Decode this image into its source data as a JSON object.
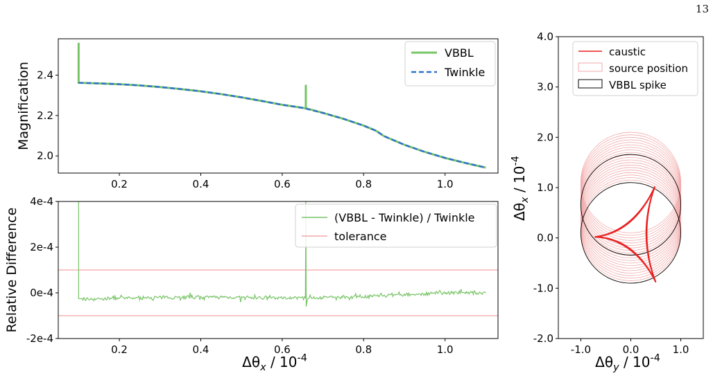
{
  "page_number": "13",
  "colors": {
    "vbbl": "#77c466",
    "twinkle": "#2f6fd0",
    "tolerance": "#f4a5a5",
    "caustic": "#e8201f",
    "source": "#f2a8a8",
    "spike": "#000000"
  },
  "chart_data": [
    {
      "id": "magnification",
      "type": "line",
      "ylabel": "Magnification",
      "xlim": [
        0.05,
        1.13
      ],
      "ylim": [
        1.915,
        2.58
      ],
      "xticks": [
        {
          "v": 0.2,
          "label": "0.2"
        },
        {
          "v": 0.4,
          "label": "0.4"
        },
        {
          "v": 0.6,
          "label": "0.6"
        },
        {
          "v": 0.8,
          "label": "0.8"
        },
        {
          "v": 1.0,
          "label": "1.0"
        }
      ],
      "yticks": [
        {
          "v": 2.0,
          "label": "2.0"
        },
        {
          "v": 2.2,
          "label": "2.2"
        },
        {
          "v": 2.4,
          "label": "2.4"
        }
      ],
      "legend": {
        "position": "top-right",
        "entries": [
          "VBBL",
          "Twinkle"
        ]
      },
      "series": [
        {
          "name": "VBBL",
          "style": "solid",
          "x": [
            0.1,
            0.1,
            0.1,
            0.1,
            0.1,
            0.15,
            0.2,
            0.25,
            0.3,
            0.35,
            0.4,
            0.45,
            0.5,
            0.55,
            0.6,
            0.65,
            0.658,
            0.658,
            0.658,
            0.662,
            0.7,
            0.75,
            0.8,
            0.83,
            0.85,
            0.9,
            0.95,
            1.0,
            1.05,
            1.1
          ],
          "y": [
            2.362,
            2.362,
            2.56,
            2.362,
            2.362,
            2.359,
            2.355,
            2.349,
            2.341,
            2.331,
            2.32,
            2.306,
            2.29,
            2.272,
            2.253,
            2.238,
            2.235,
            2.352,
            2.235,
            2.234,
            2.213,
            2.184,
            2.15,
            2.125,
            2.098,
            2.055,
            2.02,
            1.99,
            1.965,
            1.942
          ]
        },
        {
          "name": "Twinkle",
          "style": "dashed",
          "x": [
            0.1,
            0.15,
            0.2,
            0.25,
            0.3,
            0.35,
            0.4,
            0.45,
            0.5,
            0.55,
            0.6,
            0.65,
            0.7,
            0.75,
            0.8,
            0.83,
            0.85,
            0.9,
            0.95,
            1.0,
            1.05,
            1.1
          ],
          "y": [
            2.362,
            2.359,
            2.355,
            2.349,
            2.341,
            2.331,
            2.32,
            2.306,
            2.29,
            2.272,
            2.253,
            2.238,
            2.213,
            2.184,
            2.15,
            2.125,
            2.098,
            2.055,
            2.02,
            1.99,
            1.965,
            1.942
          ]
        }
      ]
    },
    {
      "id": "relative-difference",
      "type": "line",
      "ylabel": "Relative Difference",
      "xlabel": "Δθ_x  /  10^-4",
      "xlim": [
        0.05,
        1.13
      ],
      "ylim": [
        -0.0002,
        0.0004
      ],
      "xticks": [
        {
          "v": 0.2,
          "label": "0.2"
        },
        {
          "v": 0.4,
          "label": "0.4"
        },
        {
          "v": 0.6,
          "label": "0.6"
        },
        {
          "v": 0.8,
          "label": "0.8"
        },
        {
          "v": 1.0,
          "label": "1.0"
        }
      ],
      "yticks": [
        {
          "v": -0.0002,
          "label": "-2e-4"
        },
        {
          "v": 0.0,
          "label": "0e-4"
        },
        {
          "v": 0.0002,
          "label": "2e-4"
        },
        {
          "v": 0.0004,
          "label": "4e-4"
        }
      ],
      "legend": {
        "position": "top-right",
        "entries": [
          "(VBBL - Twinkle) / Twinkle",
          "tolerance"
        ]
      },
      "tolerance": [
        0.0001,
        -0.0001
      ],
      "series": [
        {
          "name": "(VBBL - Twinkle) / Twinkle",
          "x": [
            0.1,
            0.1,
            0.1,
            0.102,
            0.15,
            0.2,
            0.25,
            0.3,
            0.35,
            0.4,
            0.45,
            0.5,
            0.55,
            0.6,
            0.65,
            0.657,
            0.658,
            0.659,
            0.662,
            0.7,
            0.75,
            0.8,
            0.85,
            0.9,
            0.95,
            1.0,
            1.05,
            1.1
          ],
          "y": [
            -2.5e-05,
            0.0004,
            -2.5e-05,
            -2.8e-05,
            -2.6e-05,
            -2.4e-05,
            -2.2e-05,
            -2e-05,
            -1.9e-05,
            -1.8e-05,
            -1.9e-05,
            -2.1e-05,
            -2.2e-05,
            -2.1e-05,
            -2.2e-05,
            -2.2e-05,
            0.0004,
            -6e-05,
            -2.2e-05,
            -2e-05,
            -1.8e-05,
            -1.6e-05,
            -1.2e-05,
            -8e-06,
            -4e-06,
            0.0,
            2e-06,
            0.0
          ],
          "noise_amplitude": 1.2e-05
        }
      ]
    },
    {
      "id": "source-plane",
      "type": "line",
      "xlabel": "Δθ_y  /  10^-4",
      "ylabel": "Δθ_x  /  10^-4",
      "xlim": [
        -1.45,
        1.45
      ],
      "ylim": [
        -2.0,
        4.0
      ],
      "xticks": [
        {
          "v": -1.0,
          "label": "-1.0"
        },
        {
          "v": 0.0,
          "label": "0.0"
        },
        {
          "v": 1.0,
          "label": "1.0"
        }
      ],
      "yticks": [
        {
          "v": -2.0,
          "label": "-2.0"
        },
        {
          "v": -1.0,
          "label": "-1.0"
        },
        {
          "v": 0.0,
          "label": "0.0"
        },
        {
          "v": 1.0,
          "label": "1.0"
        },
        {
          "v": 2.0,
          "label": "2.0"
        },
        {
          "v": 3.0,
          "label": "3.0"
        },
        {
          "v": 4.0,
          "label": "4.0"
        }
      ],
      "legend": {
        "position": "top-center",
        "entries": [
          "caustic",
          "source position",
          "VBBL spike"
        ]
      },
      "caustic": {
        "cusps": [
          [
            0.48,
            1.02
          ],
          [
            -0.72,
            0.02
          ],
          [
            0.5,
            -0.88
          ]
        ]
      },
      "source_radius": 1.0,
      "source_centers": {
        "x": 0.0,
        "y_from": 0.1,
        "y_to": 1.1,
        "count": 21
      },
      "spike_centers": [
        {
          "x": 0.0,
          "y": 0.1
        },
        {
          "x": 0.0,
          "y": 0.66
        }
      ]
    }
  ]
}
